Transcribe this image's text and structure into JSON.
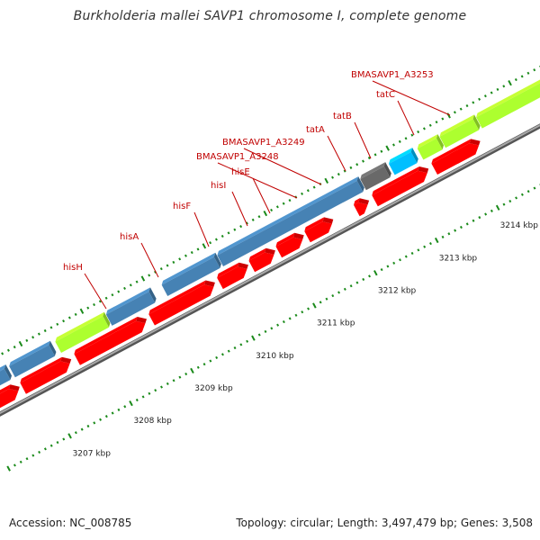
{
  "title": "Burkholderia mallei SAVP1 chromosome I, complete genome",
  "footer": {
    "accession": "Accession: NC_008785",
    "summary": "Topology: circular; Length: 3,497,479 bp; Genes: 3,508"
  },
  "kbp_labels": [
    "3207 kbp",
    "3208 kbp",
    "3209 kbp",
    "3210 kbp",
    "3211 kbp",
    "3212 kbp",
    "3213 kbp",
    "3214 kbp"
  ],
  "gene_labels": [
    "hisH",
    "hisA",
    "hisF",
    "hisI",
    "hisE",
    "BMASAVP1_A3248",
    "BMASAVP1_A3249",
    "tatA",
    "tatB",
    "tatC",
    "BMASAVP1_A3253"
  ],
  "colors": {
    "gene_label": "#c00000",
    "forward_cds": "#ff0000",
    "orf_blue": "#4682b4",
    "orf_green": "#adff2f",
    "orf_gray": "#696969",
    "orf_cyan": "#00bfff",
    "orf_darkblue": "#0000ee",
    "orf_khaki": "#b5b076",
    "backbone": "#808080",
    "tick": "#1a8a1a"
  }
}
